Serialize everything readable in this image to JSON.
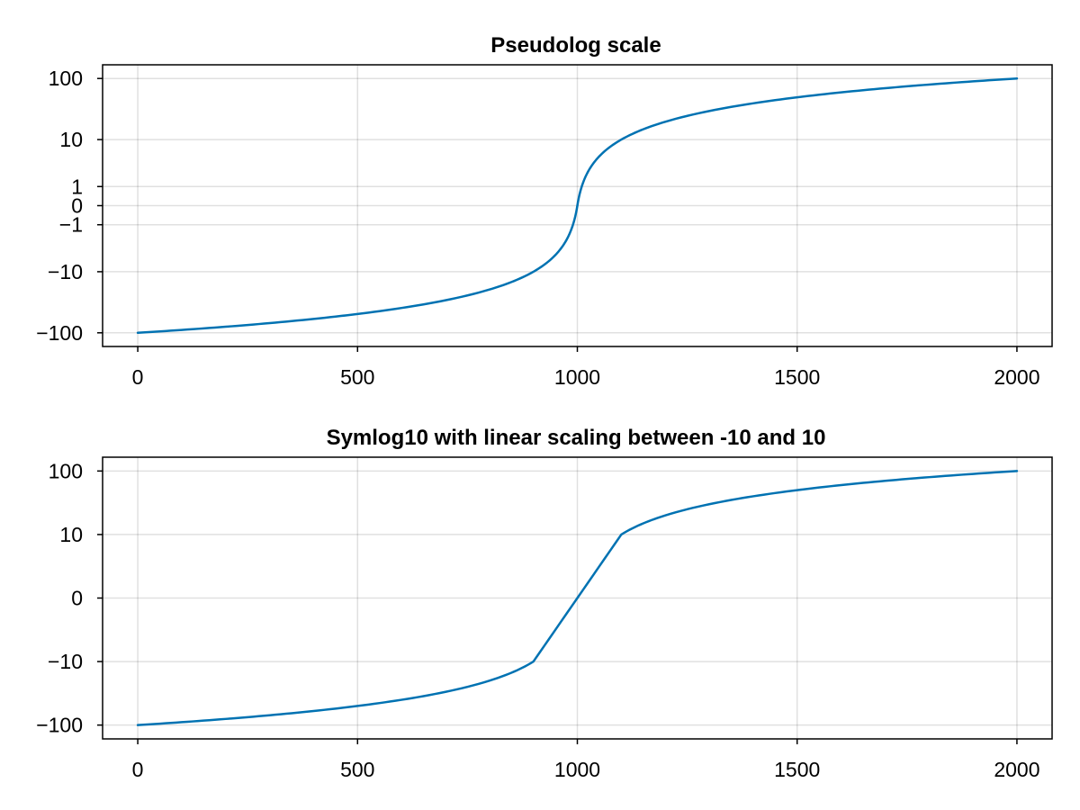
{
  "colors": {
    "series": "#0072b2"
  },
  "chart_data": [
    {
      "type": "line",
      "title": "Pseudolog scale",
      "xlabel": "",
      "ylabel": "",
      "yscale": "pseudolog",
      "xlim": [
        -80,
        2080
      ],
      "ylim": [
        -165,
        165
      ],
      "grid": true,
      "xticks": [
        {
          "value": 0,
          "label": "0"
        },
        {
          "value": 500,
          "label": "500"
        },
        {
          "value": 1000,
          "label": "1000"
        },
        {
          "value": 1500,
          "label": "1500"
        },
        {
          "value": 2000,
          "label": "2000"
        }
      ],
      "yticks": [
        {
          "value": -100,
          "label": "−100"
        },
        {
          "value": -10,
          "label": "−10"
        },
        {
          "value": -1,
          "label": "−1"
        },
        {
          "value": 0,
          "label": "0"
        },
        {
          "value": 1,
          "label": "1"
        },
        {
          "value": 10,
          "label": "10"
        },
        {
          "value": 100,
          "label": "100"
        }
      ],
      "series": [
        {
          "x": [
            0,
            100,
            200,
            300,
            400,
            500,
            600,
            700,
            800,
            850,
            900,
            925,
            950,
            970,
            980,
            990,
            995,
            1000,
            1005,
            1010,
            1020,
            1030,
            1050,
            1075,
            1100,
            1150,
            1200,
            1300,
            1400,
            1500,
            1600,
            1700,
            1800,
            1900,
            2000
          ],
          "y": [
            -100,
            -90,
            -80,
            -70,
            -60,
            -50,
            -40,
            -30,
            -20,
            -15,
            -10,
            -7.5,
            -5,
            -3,
            -2,
            -1,
            -0.5,
            0,
            0.5,
            1,
            2,
            3,
            5,
            7.5,
            10,
            15,
            20,
            30,
            40,
            50,
            60,
            70,
            80,
            90,
            100
          ]
        }
      ]
    },
    {
      "type": "line",
      "title": "Symlog10 with linear scaling between -10 and 10",
      "xlabel": "",
      "ylabel": "",
      "yscale": "symlog10",
      "linear_threshold": 10,
      "xlim": [
        -80,
        2080
      ],
      "ylim": [
        -165,
        165
      ],
      "grid": true,
      "xticks": [
        {
          "value": 0,
          "label": "0"
        },
        {
          "value": 500,
          "label": "500"
        },
        {
          "value": 1000,
          "label": "1000"
        },
        {
          "value": 1500,
          "label": "1500"
        },
        {
          "value": 2000,
          "label": "2000"
        }
      ],
      "yticks": [
        {
          "value": -100,
          "label": "−100"
        },
        {
          "value": -10,
          "label": "−10"
        },
        {
          "value": 0,
          "label": "0"
        },
        {
          "value": 10,
          "label": "10"
        },
        {
          "value": 100,
          "label": "100"
        }
      ],
      "series": [
        {
          "x": [
            0,
            100,
            200,
            300,
            400,
            500,
            600,
            700,
            800,
            850,
            900,
            1000,
            1100,
            1150,
            1200,
            1300,
            1400,
            1500,
            1600,
            1700,
            1800,
            1900,
            2000
          ],
          "y": [
            -100,
            -90,
            -80,
            -70,
            -60,
            -50,
            -40,
            -30,
            -20,
            -15,
            -10,
            0,
            10,
            15,
            20,
            30,
            40,
            50,
            60,
            70,
            80,
            90,
            100
          ]
        }
      ]
    }
  ]
}
